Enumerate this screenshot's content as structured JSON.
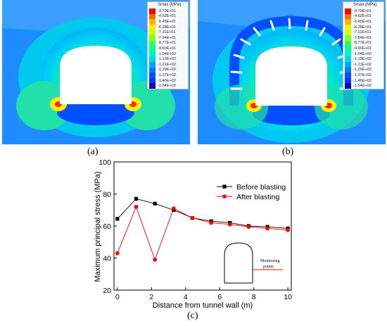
{
  "panels": [
    {
      "label": "(a)",
      "legend_title": "Smax (MPa)",
      "legend_values": [
        "-3.79E+01",
        "-4.62E+01",
        "-5.45E+01",
        "-6.28E+01",
        "-7.11E+01",
        "-7.94E+01",
        "-8.77E+01",
        "-9.60E+01",
        "-1.04E+02",
        "-1.13E+02",
        "-1.21E+02",
        "-1.29E+02",
        "-1.37E+02",
        "-1.46E+02",
        "-1.54E+02"
      ]
    },
    {
      "label": "(b)",
      "legend_title": "Smax (MPa)",
      "legend_values": [
        "-3.79E+01",
        "-4.62E+01",
        "-5.45E+01",
        "-6.28E+01",
        "-7.11E+01",
        "-7.94E+01",
        "-8.77E+01",
        "-9.60E+01",
        "-1.04E+02",
        "-1.13E+02",
        "-1.21E+02",
        "-1.29E+02",
        "-1.37E+02",
        "-1.46E+02",
        "-1.54E+02"
      ]
    }
  ],
  "legend_colors": [
    "#ff0000",
    "#ff6a00",
    "#ffb400",
    "#ffee00",
    "#ccff00",
    "#88ff22",
    "#33ff55",
    "#00ff99",
    "#00f2cc",
    "#00d4ee",
    "#00a8ff",
    "#007cff",
    "#0050ff",
    "#1a2dff",
    "#1010b0"
  ],
  "panel_c_label": "(c)",
  "chart_data": {
    "type": "line",
    "xlabel": "Distance from tunnel wall (m)",
    "ylabel": "Maximum principal stress (MPa)",
    "xlim": [
      -0.2,
      10.2
    ],
    "ylim": [
      20,
      100
    ],
    "xticks": [
      0,
      2,
      4,
      6,
      8,
      10
    ],
    "yticks": [
      20,
      40,
      60,
      80,
      100
    ],
    "legend_position": "top-right",
    "series": [
      {
        "name": "Before blasting",
        "color": "#000000",
        "marker": "square",
        "x": [
          0,
          1.1,
          2.2,
          3.3,
          4.4,
          5.5,
          6.6,
          7.7,
          8.8,
          10.0
        ],
        "y": [
          64.5,
          77.0,
          74.0,
          70.0,
          65.0,
          63.0,
          62.0,
          60.0,
          59.5,
          58.5
        ]
      },
      {
        "name": "After blasting",
        "color": "#ff0000",
        "marker": "circle",
        "x": [
          0,
          1.1,
          2.2,
          3.3,
          4.4,
          5.5,
          6.6,
          7.7,
          8.8,
          10.0
        ],
        "y": [
          43.0,
          72.0,
          39.0,
          71.0,
          65.0,
          62.0,
          61.0,
          59.5,
          58.5,
          57.5
        ]
      }
    ],
    "annotations": [
      {
        "text": "Monitoring"
      },
      {
        "text": "points"
      }
    ]
  }
}
